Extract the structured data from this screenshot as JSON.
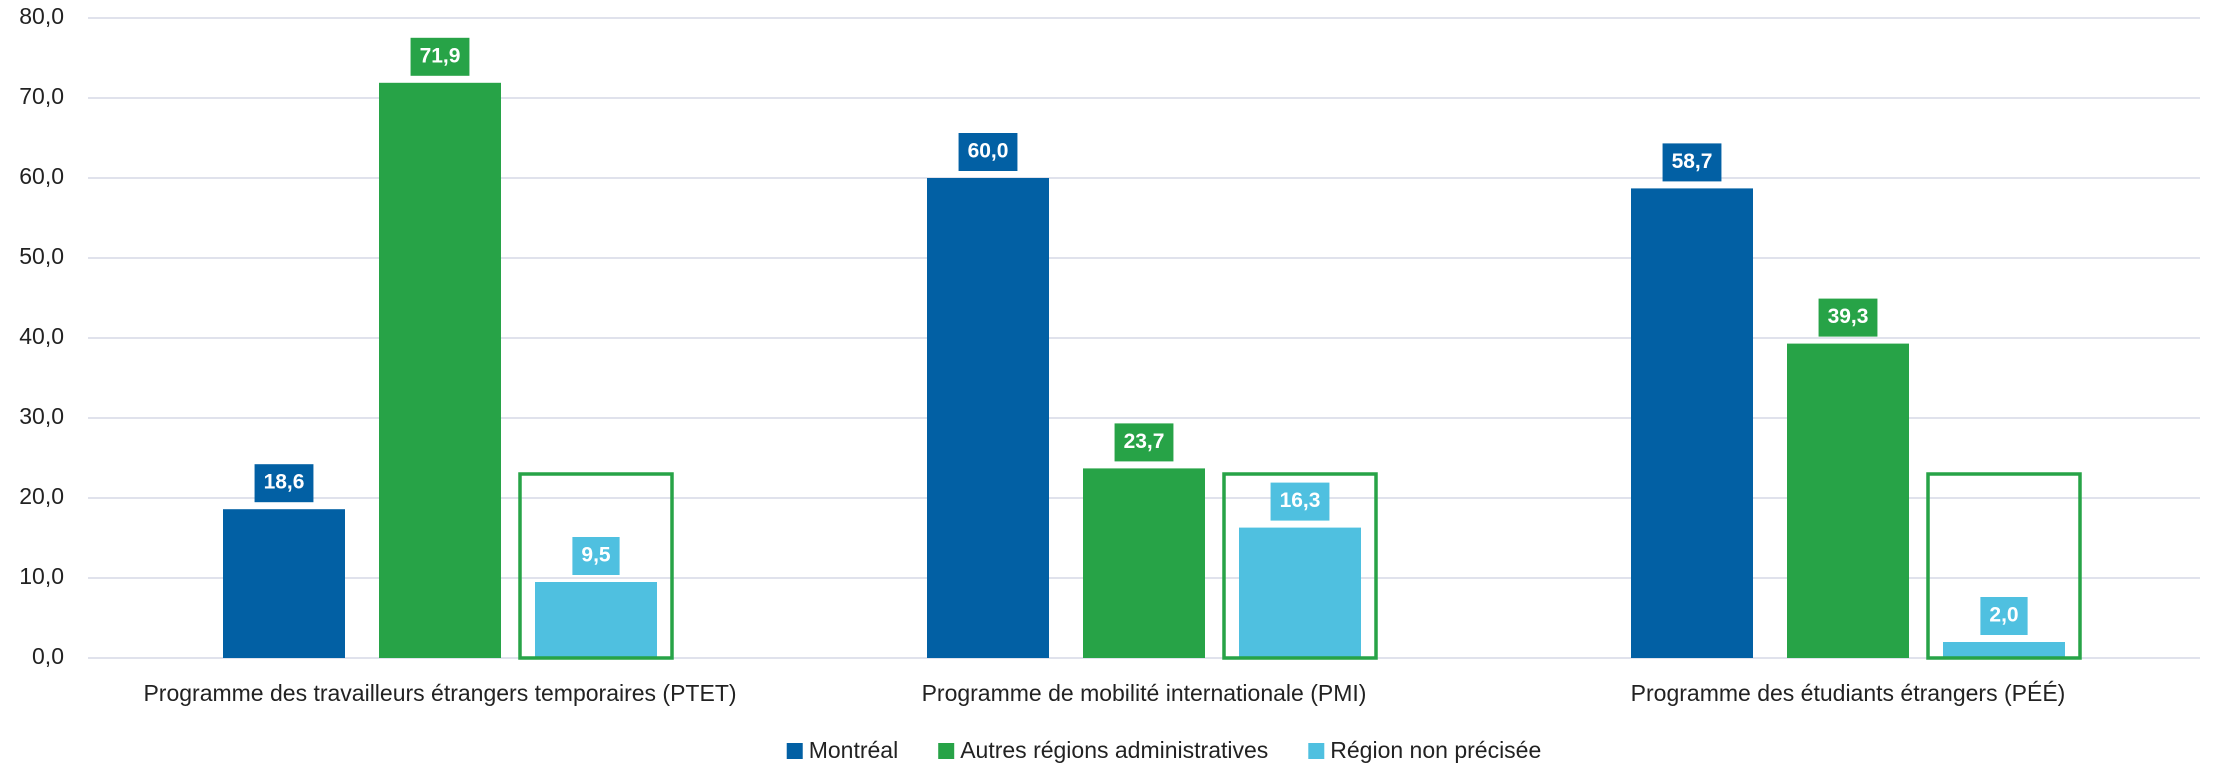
{
  "chart_data": {
    "type": "bar",
    "categories": [
      "Programme des travailleurs étrangers temporaires (PTET)",
      "Programme de mobilité internationale (PMI)",
      "Programme des étudiants étrangers (PÉÉ)"
    ],
    "series": [
      {
        "name": "Montréal",
        "color": "#0260a4",
        "values": [
          18.6,
          60.0,
          58.7
        ],
        "value_labels": [
          "18,6",
          "60,0",
          "58,7"
        ]
      },
      {
        "name": "Autres régions administratives",
        "color": "#27a347",
        "values": [
          71.9,
          23.7,
          39.3
        ],
        "value_labels": [
          "71,9",
          "23,7",
          "39,3"
        ]
      },
      {
        "name": "Région non précisée",
        "color": "#4fc0e0",
        "values": [
          9.5,
          16.3,
          2.0
        ],
        "value_labels": [
          "9,5",
          "16,3",
          "2,0"
        ]
      }
    ],
    "ylim": [
      0,
      80
    ],
    "yticks": [
      {
        "value": 0,
        "label": "0,0"
      },
      {
        "value": 10,
        "label": "10,0"
      },
      {
        "value": 20,
        "label": "20,0"
      },
      {
        "value": 30,
        "label": "30,0"
      },
      {
        "value": 40,
        "label": "40,0"
      },
      {
        "value": 50,
        "label": "50,0"
      },
      {
        "value": 60,
        "label": "60,0"
      },
      {
        "value": 70,
        "label": "70,0"
      },
      {
        "value": 80,
        "label": "80,0"
      }
    ],
    "grid": true,
    "legend": "bottom"
  }
}
